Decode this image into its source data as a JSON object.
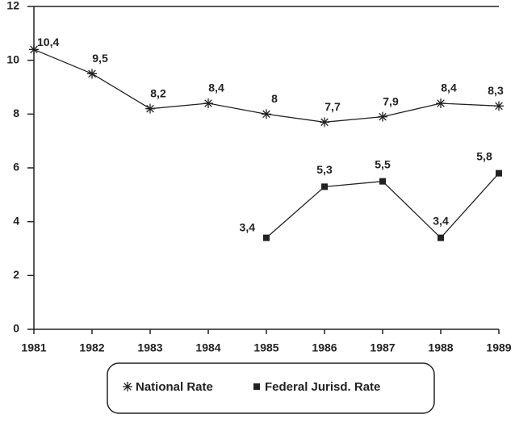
{
  "chart_data": {
    "type": "line",
    "x": [
      1981,
      1982,
      1983,
      1984,
      1985,
      1986,
      1987,
      1988,
      1989
    ],
    "xlim": [
      1981,
      1989
    ],
    "xticks": [
      1981,
      1982,
      1983,
      1984,
      1985,
      1986,
      1987,
      1988,
      1989
    ],
    "ylim": [
      0,
      12
    ],
    "yticks": [
      0,
      2,
      4,
      6,
      8,
      10,
      12
    ],
    "series": [
      {
        "name": "National Rate",
        "color": "#222222",
        "marker": "asterisk",
        "values": [
          10.4,
          9.5,
          8.2,
          8.4,
          8,
          7.7,
          7.9,
          8.4,
          8.3
        ],
        "value_labels": [
          "10,4",
          "9,5",
          "8,2",
          "8,4",
          "8",
          "7,7",
          "7,9",
          "8,4",
          "8,3"
        ]
      },
      {
        "name": "Federal Jurisd. Rate",
        "color": "#222222",
        "marker": "square",
        "values": [
          null,
          null,
          null,
          null,
          3.4,
          5.3,
          5.5,
          3.4,
          5.8
        ],
        "value_labels": [
          null,
          null,
          null,
          null,
          "3,4",
          "5,3",
          "5,5",
          "3,4",
          "5,8"
        ]
      }
    ]
  }
}
